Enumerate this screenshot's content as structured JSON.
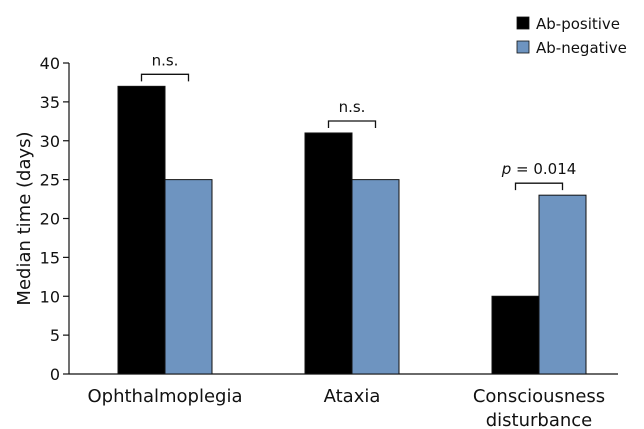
{
  "chart_data": {
    "type": "bar",
    "title": "",
    "xlabel": "",
    "ylabel": "Median time (days)",
    "ylim": [
      0,
      40
    ],
    "yticks": [
      0,
      5,
      10,
      15,
      20,
      25,
      30,
      35,
      40
    ],
    "categories": [
      "Ophthalmoplegia",
      "Ataxia",
      "Consciousness disturbance"
    ],
    "category_lines": [
      [
        "Ophthalmoplegia"
      ],
      [
        "Ataxia"
      ],
      [
        "Consciousness",
        "disturbance"
      ]
    ],
    "series": [
      {
        "name": "Ab-positive",
        "color": "#000000",
        "values": [
          37,
          31,
          10
        ]
      },
      {
        "name": "Ab-negative",
        "color": "#6e94c0",
        "values": [
          25,
          25,
          23
        ]
      }
    ],
    "annotations": [
      {
        "category": "Ophthalmoplegia",
        "label": "n.s.",
        "italic_prefix": ""
      },
      {
        "category": "Ataxia",
        "label": "n.s.",
        "italic_prefix": ""
      },
      {
        "category": "Consciousness disturbance",
        "label": " = 0.014",
        "italic_prefix": "p"
      }
    ],
    "legend_position": "top-right",
    "grid": false
  }
}
